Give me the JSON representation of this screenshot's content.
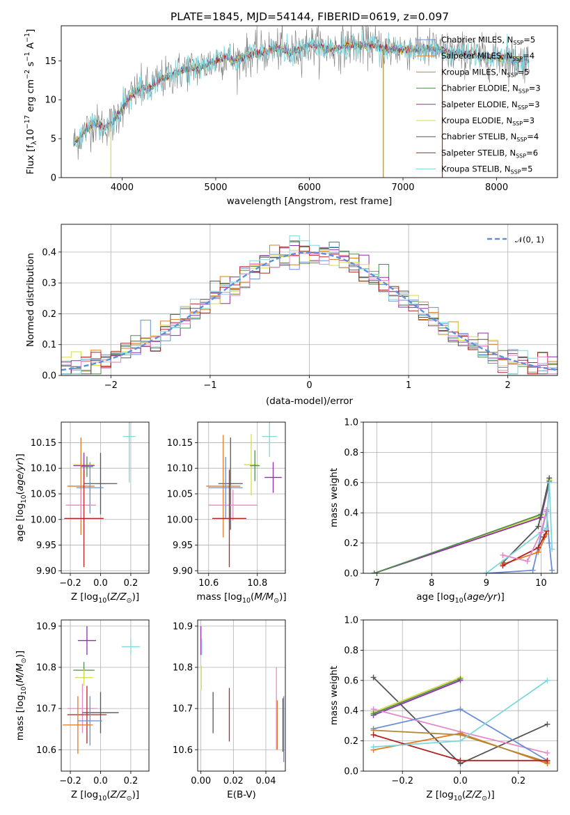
{
  "figure_title": "PLATE=1845, MJD=54144, FIBERID=0619, z=0.097",
  "colors": {
    "Chabrier MILES": "#6a8fd6",
    "Salpeter MILES": "#e07a25",
    "Kroupa MILES": "#b08a35",
    "Chabrier ELODIE": "#4f8a4f",
    "Salpeter ELODIE": "#8e2ea8",
    "Kroupa ELODIE": "#d4dc4a",
    "Chabrier STELIB": "#555555",
    "Salpeter STELIB": "#b22222",
    "Kroupa STELIB": "#7fd6dc",
    "Pink": "#e58ac6",
    "Grid": "#b0b0b0",
    "Gaussian": "#5b8fdc"
  },
  "chart_data": [
    {
      "id": "spectrum",
      "type": "line",
      "title": "PLATE=1845, MJD=54144, FIBERID=0619, z=0.097",
      "xlabel": "wavelength [Angstrom, rest frame]",
      "ylabel": "Flux [f_λ10^-17 erg cm^-2 s^-1 A^-1]",
      "xlim": [
        3350,
        8650
      ],
      "ylim": [
        0,
        19.5
      ],
      "xticks": [
        4000,
        5000,
        6000,
        7000,
        8000
      ],
      "yticks": [
        0,
        5,
        10,
        15
      ],
      "grid": false,
      "legend_position": "right",
      "envelope": {
        "wavelength": [
          3500,
          3600,
          3700,
          3800,
          3900,
          4000,
          4100,
          4200,
          4300,
          4400,
          4500,
          4600,
          4700,
          4800,
          4900,
          5000,
          5100,
          5200,
          5300,
          5400,
          5500,
          5600,
          5700,
          5800,
          5900,
          6000,
          6100,
          6200,
          6300,
          6400,
          6500,
          6600,
          6700,
          6800,
          6900,
          7000,
          7100,
          7200,
          7300,
          7400,
          7500,
          7600,
          7700,
          7800,
          7900,
          8000,
          8100,
          8200,
          8300
        ],
        "flux": [
          4.5,
          6.0,
          7.0,
          6.5,
          7.0,
          9.0,
          10.5,
          11.5,
          11.5,
          12.5,
          13.0,
          13.5,
          14.0,
          14.0,
          14.5,
          15.0,
          15.5,
          15.0,
          15.5,
          16.0,
          16.0,
          16.5,
          16.5,
          16.0,
          16.5,
          17.0,
          17.0,
          16.5,
          16.5,
          17.0,
          17.0,
          17.0,
          17.0,
          16.5,
          16.5,
          16.5,
          16.5,
          16.5,
          16.5,
          16.5,
          16.0,
          16.0,
          16.0,
          15.5,
          15.5,
          15.5,
          15.5,
          15.0,
          15.0
        ]
      },
      "series": [
        {
          "name": "Chabrier MILES",
          "nssp": "5"
        },
        {
          "name": "Salpeter MILES",
          "nssp": "4"
        },
        {
          "name": "Kroupa MILES",
          "nssp": "5"
        },
        {
          "name": "Chabrier ELODIE",
          "nssp": "3"
        },
        {
          "name": "Salpeter ELODIE",
          "nssp": "3"
        },
        {
          "name": "Kroupa ELODIE",
          "nssp": "3"
        },
        {
          "name": "Chabrier STELIB",
          "nssp": "4"
        },
        {
          "name": "Salpeter STELIB",
          "nssp": "6"
        },
        {
          "name": "Kroupa STELIB",
          "nssp": "5"
        }
      ],
      "vertical_drops": [
        {
          "x": 3880,
          "series": "Kroupa ELODIE"
        },
        {
          "x": 6790,
          "series": "Kroupa MILES"
        },
        {
          "x": 7420,
          "series": "Salpeter STELIB"
        }
      ]
    },
    {
      "id": "residuals",
      "type": "histogram",
      "xlabel": "(data-model)/error",
      "ylabel": "Normed distribution",
      "xlim": [
        -2.5,
        2.5
      ],
      "ylim": [
        0,
        0.49
      ],
      "xticks": [
        -2,
        -1,
        0,
        1,
        2
      ],
      "yticks": [
        0.0,
        0.1,
        0.2,
        0.3,
        0.4
      ],
      "grid": true,
      "legend": [
        "𝒩(0, 1)"
      ],
      "legend_position": "top-right",
      "bin_width": 0.1,
      "gaussian": {
        "mean": 0,
        "sigma": 1
      }
    },
    {
      "id": "age_vs_Z",
      "type": "errorbar",
      "xlabel": "Z [log10(Z/Z⊙)]",
      "ylabel": "age  [log10(age/yr)]",
      "xlim": [
        -0.26,
        0.32
      ],
      "ylim": [
        9.895,
        10.19
      ],
      "xticks": [
        -0.2,
        0.0,
        0.2
      ],
      "yticks": [
        9.9,
        9.95,
        10.0,
        10.05,
        10.1,
        10.15
      ],
      "grid": true,
      "points": [
        {
          "series": "Kroupa STELIB",
          "x": 0.19,
          "y": 10.162,
          "xerr": 0.04,
          "yerr": 0.09
        },
        {
          "series": "Kroupa ELODIE",
          "x": -0.11,
          "y": 10.107,
          "xerr": 0.07,
          "yerr": 0.025
        },
        {
          "series": "Salpeter ELODIE",
          "x": -0.11,
          "y": 10.105,
          "xerr": 0.07,
          "yerr": 0.025
        },
        {
          "series": "Chabrier ELODIE",
          "x": -0.09,
          "y": 10.103,
          "xerr": 0.04,
          "yerr": 0.02
        },
        {
          "series": "Chabrier STELIB",
          "x": 0.0,
          "y": 10.07,
          "xerr": 0.11,
          "yerr": 0.06
        },
        {
          "series": "Salpeter MILES",
          "x": -0.13,
          "y": 10.065,
          "xerr": 0.09,
          "yerr": 0.095
        },
        {
          "series": "Chabrier MILES",
          "x": -0.07,
          "y": 10.062,
          "xerr": 0.09,
          "yerr": 0.05
        },
        {
          "series": "Pink",
          "x": -0.13,
          "y": 10.028,
          "xerr": 0.1,
          "yerr": 0.03
        },
        {
          "series": "Salpeter STELIB",
          "x": -0.11,
          "y": 10.002,
          "xerr": 0.13,
          "yerr": 0.095
        }
      ]
    },
    {
      "id": "age_vs_mass",
      "type": "errorbar",
      "xlabel": "mass [log10(M/M⊙)]",
      "ylabel": "",
      "xlim": [
        10.555,
        10.915
      ],
      "ylim": [
        9.895,
        10.19
      ],
      "xticks": [
        10.6,
        10.8
      ],
      "yticks": [
        9.9,
        9.95,
        10.0,
        10.05,
        10.1,
        10.15
      ],
      "grid": true,
      "points": [
        {
          "series": "Kroupa STELIB",
          "x": 10.85,
          "y": 10.162,
          "xerr": 0.03,
          "yerr": 0.04
        },
        {
          "series": "Kroupa ELODIE",
          "x": 10.775,
          "y": 10.107,
          "xerr": 0.03,
          "yerr": 0.06
        },
        {
          "series": "Chabrier ELODIE",
          "x": 10.79,
          "y": 10.105,
          "xerr": 0.02,
          "yerr": 0.03
        },
        {
          "series": "Salpeter ELODIE",
          "x": 10.865,
          "y": 10.082,
          "xerr": 0.035,
          "yerr": 0.03
        },
        {
          "series": "Chabrier STELIB",
          "x": 10.69,
          "y": 10.07,
          "xerr": 0.05,
          "yerr": 0.09
        },
        {
          "series": "Salpeter MILES",
          "x": 10.66,
          "y": 10.065,
          "xerr": 0.07,
          "yerr": 0.1
        },
        {
          "series": "Chabrier MILES",
          "x": 10.67,
          "y": 10.062,
          "xerr": 0.07,
          "yerr": 0.06
        },
        {
          "series": "Pink",
          "x": 10.7,
          "y": 10.028,
          "xerr": 0.1,
          "yerr": 0.03
        },
        {
          "series": "Salpeter STELIB",
          "x": 10.685,
          "y": 10.002,
          "xerr": 0.07,
          "yerr": 0.095
        }
      ]
    },
    {
      "id": "weight_vs_age",
      "type": "line",
      "xlabel": "age  [log10(age/yr)]",
      "ylabel": "mass weight",
      "xlim": [
        6.75,
        10.3
      ],
      "ylim": [
        0,
        1.0
      ],
      "xticks": [
        7,
        8,
        9,
        10
      ],
      "yticks": [
        0.0,
        0.2,
        0.4,
        0.6,
        0.8,
        1.0
      ],
      "grid": true,
      "series": [
        {
          "name": "Kroupa ELODIE",
          "x": [
            6.95,
            10.0,
            10.15
          ],
          "y": [
            0.0,
            0.38,
            0.62
          ]
        },
        {
          "name": "Salpeter ELODIE",
          "x": [
            6.95,
            10.0,
            10.15
          ],
          "y": [
            0.0,
            0.37,
            0.6
          ]
        },
        {
          "name": "Chabrier ELODIE",
          "x": [
            6.95,
            10.0,
            10.15
          ],
          "y": [
            0.0,
            0.39,
            0.61
          ]
        },
        {
          "name": "Chabrier STELIB",
          "x": [
            9.3,
            9.95,
            10.15
          ],
          "y": [
            0.07,
            0.31,
            0.63
          ]
        },
        {
          "name": "Chabrier MILES",
          "x": [
            9.0,
            9.85,
            10.1,
            10.15,
            10.2
          ],
          "y": [
            0.0,
            0.02,
            0.41,
            0.2,
            0.02
          ]
        },
        {
          "name": "Salpeter MILES",
          "x": [
            9.3,
            9.95,
            10.1
          ],
          "y": [
            0.06,
            0.14,
            0.26
          ]
        },
        {
          "name": "Salpeter STELIB",
          "x": [
            9.3,
            9.95,
            10.05,
            10.1
          ],
          "y": [
            0.05,
            0.17,
            0.24,
            0.28
          ]
        },
        {
          "name": "Kroupa STELIB",
          "x": [
            9.0,
            10.1,
            10.15,
            10.2
          ],
          "y": [
            0.0,
            0.3,
            0.6,
            0.16
          ]
        },
        {
          "name": "Pink",
          "x": [
            9.3,
            9.75,
            10.0,
            10.1
          ],
          "y": [
            0.12,
            0.08,
            0.27,
            0.42
          ]
        }
      ]
    },
    {
      "id": "mass_vs_Z",
      "type": "errorbar",
      "xlabel": "Z [log10(Z/Z⊙)]",
      "ylabel": "mass [log10(M/M⊙)]",
      "xlim": [
        -0.26,
        0.32
      ],
      "ylim": [
        10.548,
        10.915
      ],
      "xticks": [
        -0.2,
        0.0,
        0.2
      ],
      "yticks": [
        10.6,
        10.7,
        10.8,
        10.9
      ],
      "grid": true,
      "points": [
        {
          "series": "Salpeter ELODIE",
          "x": -0.09,
          "y": 10.865,
          "xerr": 0.06,
          "yerr": 0.035
        },
        {
          "series": "Kroupa STELIB",
          "x": 0.2,
          "y": 10.85,
          "xerr": 0.06,
          "yerr": 0.02
        },
        {
          "series": "Chabrier ELODIE",
          "x": -0.11,
          "y": 10.793,
          "xerr": 0.07,
          "yerr": 0.02
        },
        {
          "series": "Kroupa ELODIE",
          "x": -0.11,
          "y": 10.775,
          "xerr": 0.06,
          "yerr": 0.02
        },
        {
          "series": "Pink",
          "x": -0.12,
          "y": 10.7,
          "xerr": 0.1,
          "yerr": 0.06
        },
        {
          "series": "Chabrier STELIB",
          "x": 0.0,
          "y": 10.69,
          "xerr": 0.12,
          "yerr": 0.05
        },
        {
          "series": "Salpeter STELIB",
          "x": -0.09,
          "y": 10.685,
          "xerr": 0.13,
          "yerr": 0.07
        },
        {
          "series": "Chabrier MILES",
          "x": -0.07,
          "y": 10.67,
          "xerr": 0.08,
          "yerr": 0.06
        },
        {
          "series": "Salpeter MILES",
          "x": -0.15,
          "y": 10.66,
          "xerr": 0.1,
          "yerr": 0.07
        }
      ]
    },
    {
      "id": "mass_vs_EBV",
      "type": "errorbar",
      "xlabel": "E(B-V)",
      "ylabel": "",
      "xlim": [
        -0.002,
        0.052
      ],
      "ylim": [
        10.548,
        10.915
      ],
      "xticks": [
        0.0,
        0.02,
        0.04
      ],
      "yticks": [
        10.6,
        10.7,
        10.8,
        10.9
      ],
      "grid": true,
      "points": [
        {
          "series": "Salpeter ELODIE",
          "x": 0.0,
          "y": 10.865,
          "xerr": 0,
          "yerr": 0.035
        },
        {
          "series": "Kroupa STELIB",
          "x": 0.0005,
          "y": 10.85,
          "xerr": 0,
          "yerr": 0.02
        },
        {
          "series": "Kroupa ELODIE",
          "x": 0.0002,
          "y": 10.775,
          "xerr": 0,
          "yerr": 0.03
        },
        {
          "series": "Chabrier STELIB",
          "x": 0.0075,
          "y": 10.69,
          "xerr": 0,
          "yerr": 0.05
        },
        {
          "series": "Salpeter STELIB",
          "x": 0.0175,
          "y": 10.685,
          "xerr": 0,
          "yerr": 0.065
        },
        {
          "series": "Pink",
          "x": 0.0465,
          "y": 10.7,
          "xerr": 0,
          "yerr": 0.1
        },
        {
          "series": "Salpeter MILES",
          "x": 0.047,
          "y": 10.66,
          "xerr": 0,
          "yerr": 0.06
        },
        {
          "series": "Chabrier STELIB",
          "x": 0.0505,
          "y": 10.66,
          "xerr": 0,
          "yerr": 0.065
        },
        {
          "series": "Chabrier MILES",
          "x": 0.051,
          "y": 10.65,
          "xerr": 0,
          "yerr": 0.08
        }
      ]
    },
    {
      "id": "weight_vs_Z",
      "type": "line",
      "xlabel": "Z [log10(Z/Z⊙)]",
      "ylabel": "mass weight",
      "xlim": [
        -0.335,
        0.335
      ],
      "ylim": [
        0,
        1.0
      ],
      "xticks": [
        -0.2,
        0.0,
        0.2
      ],
      "yticks": [
        0.0,
        0.2,
        0.4,
        0.6,
        0.8,
        1.0
      ],
      "grid": true,
      "series": [
        {
          "name": "Chabrier STELIB",
          "x": [
            -0.3,
            0.0,
            0.3
          ],
          "y": [
            0.62,
            0.05,
            0.31
          ]
        },
        {
          "name": "Kroupa ELODIE",
          "x": [
            -0.3,
            0.0
          ],
          "y": [
            0.39,
            0.62
          ]
        },
        {
          "name": "Salpeter ELODIE",
          "x": [
            -0.3,
            0.0
          ],
          "y": [
            0.37,
            0.6
          ]
        },
        {
          "name": "Pink",
          "x": [
            -0.3,
            0.0,
            0.3
          ],
          "y": [
            0.41,
            0.26,
            0.12
          ]
        },
        {
          "name": "Chabrier MILES",
          "x": [
            -0.3,
            0.0,
            0.3
          ],
          "y": [
            0.28,
            0.41,
            0.07
          ]
        },
        {
          "name": "Salpeter MILES",
          "x": [
            -0.3,
            0.0,
            0.3
          ],
          "y": [
            0.14,
            0.25,
            0.05
          ]
        },
        {
          "name": "Kroupa MILES",
          "x": [
            -0.3,
            0.0,
            0.3
          ],
          "y": [
            0.27,
            0.24,
            0.06
          ]
        },
        {
          "name": "Salpeter STELIB",
          "x": [
            -0.3,
            0.0,
            0.3
          ],
          "y": [
            0.24,
            0.07,
            0.07
          ]
        },
        {
          "name": "Kroupa STELIB",
          "x": [
            -0.3,
            0.0,
            0.3
          ],
          "y": [
            0.16,
            0.2,
            0.6
          ]
        },
        {
          "name": "Chabrier ELODIE",
          "x": [
            -0.3,
            0.0
          ],
          "y": [
            0.38,
            0.61
          ]
        }
      ]
    }
  ]
}
